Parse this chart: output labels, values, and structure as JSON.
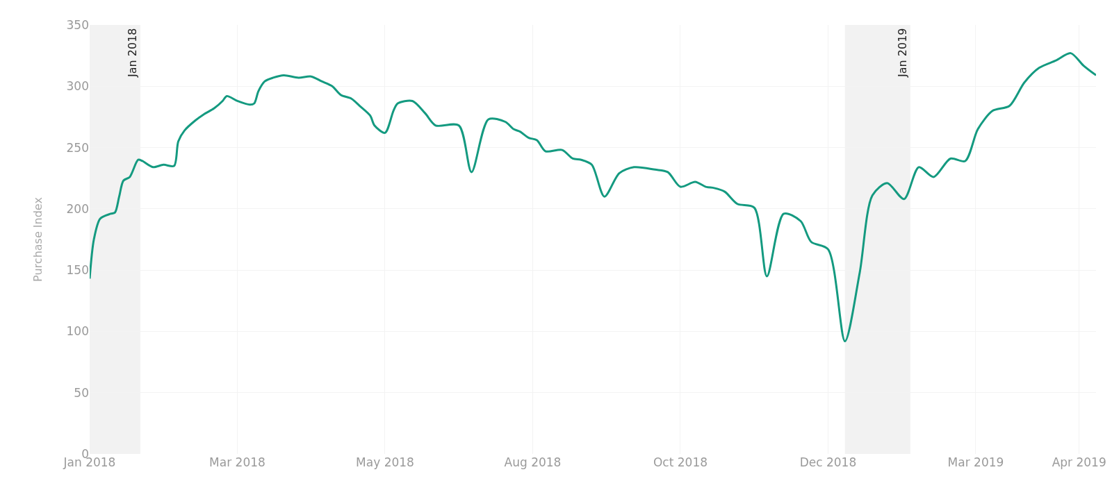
{
  "chart_data": {
    "type": "line",
    "ylabel": "Purchase Index",
    "x": [
      "2018-01-08",
      "2018-01-10",
      "2018-01-13",
      "2018-01-18",
      "2018-01-20",
      "2018-01-22",
      "2018-01-24",
      "2018-01-27",
      "2018-01-31",
      "2018-02-02",
      "2018-02-07",
      "2018-02-12",
      "2018-02-17",
      "2018-02-19",
      "2018-02-22",
      "2018-02-27",
      "2018-03-03",
      "2018-03-08",
      "2018-03-12",
      "2018-03-14",
      "2018-03-19",
      "2018-03-25",
      "2018-03-27",
      "2018-03-29",
      "2018-04-01",
      "2018-04-05",
      "2018-04-10",
      "2018-04-17",
      "2018-04-23",
      "2018-04-28",
      "2018-05-03",
      "2018-05-07",
      "2018-05-12",
      "2018-05-16",
      "2018-05-21",
      "2018-05-23",
      "2018-05-28",
      "2018-06-01",
      "2018-06-03",
      "2018-06-10",
      "2018-06-16",
      "2018-06-21",
      "2018-07-02",
      "2018-07-08",
      "2018-07-16",
      "2018-07-24",
      "2018-07-28",
      "2018-07-31",
      "2018-08-04",
      "2018-08-08",
      "2018-08-12",
      "2018-08-20",
      "2018-08-25",
      "2018-08-29",
      "2018-09-03",
      "2018-09-09",
      "2018-09-16",
      "2018-09-23",
      "2018-10-03",
      "2018-10-09",
      "2018-10-15",
      "2018-10-22",
      "2018-10-27",
      "2018-10-31",
      "2018-11-05",
      "2018-11-11",
      "2018-11-19",
      "2018-11-25",
      "2018-12-03",
      "2018-12-11",
      "2018-12-16",
      "2018-12-24",
      "2019-01-01",
      "2019-01-08",
      "2019-01-14",
      "2019-01-21",
      "2019-01-29",
      "2019-02-05",
      "2019-02-12",
      "2019-02-20",
      "2019-02-27",
      "2019-03-05",
      "2019-03-12",
      "2019-03-20",
      "2019-03-27",
      "2019-04-03",
      "2019-04-11",
      "2019-04-18",
      "2019-04-24",
      "2019-04-30"
    ],
    "series": [
      {
        "color": "#149a80",
        "values": [
          143,
          175,
          192,
          196,
          197,
          210,
          223,
          226,
          240,
          239,
          234,
          236,
          235,
          255,
          264,
          272,
          277,
          282,
          288,
          292,
          288,
          285,
          286,
          296,
          304,
          307,
          309,
          307,
          308,
          304,
          300,
          293,
          290,
          284,
          276,
          268,
          262,
          280,
          286,
          288,
          278,
          268,
          268,
          230,
          273,
          271,
          265,
          263,
          258,
          256,
          247,
          248,
          241,
          240,
          236,
          210,
          229,
          234,
          232,
          230,
          218,
          222,
          218,
          217,
          214,
          204,
          201,
          145,
          196,
          190,
          173,
          167,
          92,
          148,
          211,
          221,
          208,
          234,
          226,
          241,
          239,
          265,
          280,
          284,
          303,
          315,
          321,
          327,
          317,
          309
        ]
      }
    ],
    "xlim": [
      "2018-01-08",
      "2019-04-30"
    ],
    "xticks": [
      {
        "value": "2018-01-08",
        "label": "Jan 2018"
      },
      {
        "value": "2018-03-19",
        "label": "Mar 2018"
      },
      {
        "value": "2018-05-28",
        "label": "May 2018"
      },
      {
        "value": "2018-08-06",
        "label": "Aug 2018"
      },
      {
        "value": "2018-10-15",
        "label": "Oct 2018"
      },
      {
        "value": "2018-12-24",
        "label": "Dec 2018"
      },
      {
        "value": "2019-03-04",
        "label": "Mar 2019"
      },
      {
        "value": "2019-04-22",
        "label": "Apr 2019"
      }
    ],
    "ylim": [
      0,
      350
    ],
    "yticks": [
      0,
      50,
      100,
      150,
      200,
      250,
      300,
      350
    ],
    "grid": true,
    "bands": [
      {
        "axis": "x",
        "from": "2018-01-01",
        "to": "2018-02-01",
        "label": "Jan 2018",
        "color": "#f2f2f2"
      },
      {
        "axis": "x",
        "from": "2019-01-01",
        "to": "2019-02-01",
        "label": "Jan 2019",
        "color": "#f2f2f2"
      }
    ]
  }
}
